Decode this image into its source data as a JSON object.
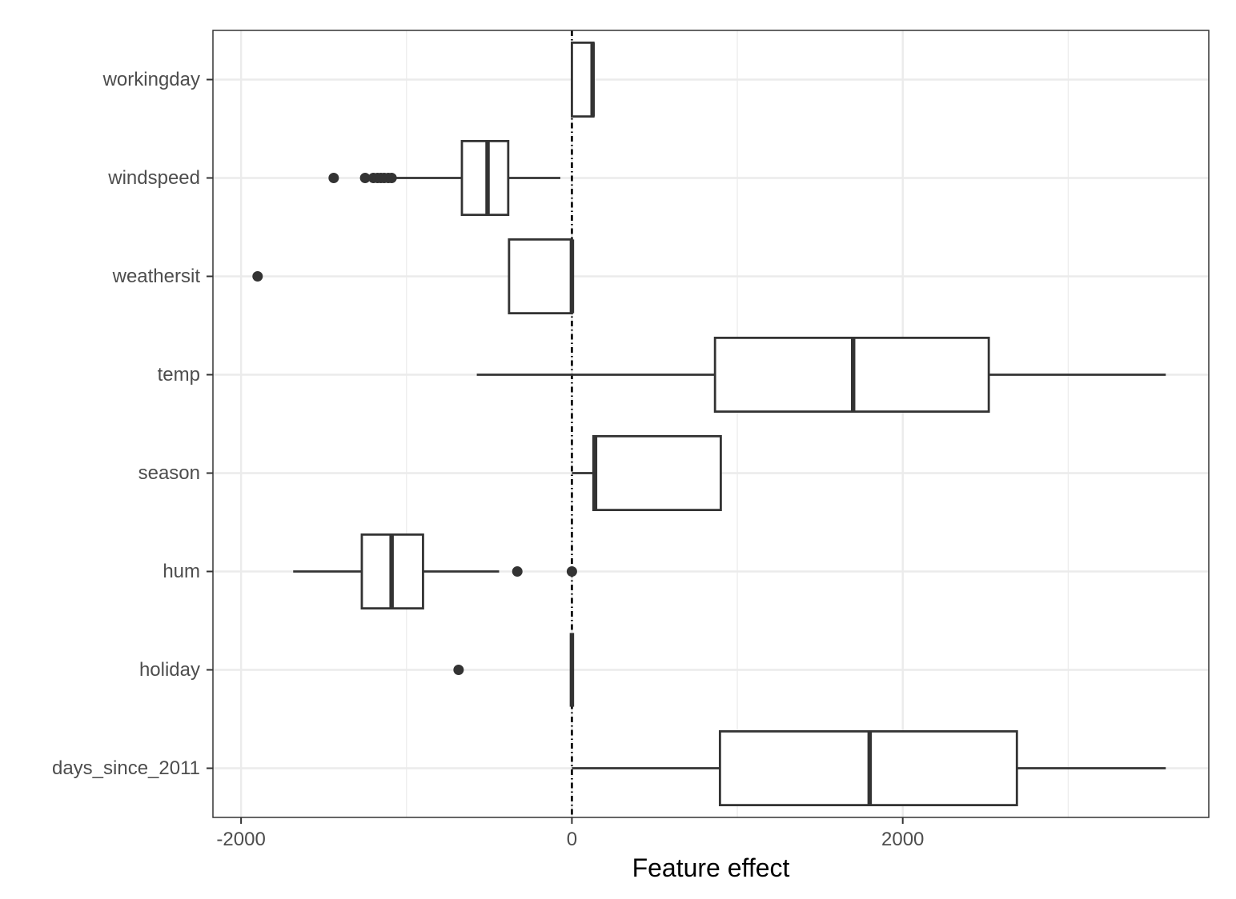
{
  "chart_data": {
    "type": "boxplot",
    "title": "",
    "xlabel": "Feature effect",
    "ylabel": "",
    "xlim": [
      -2170,
      3850
    ],
    "x_ticks": [
      -2000,
      0,
      2000
    ],
    "x_tick_labels": [
      "-2000",
      "0",
      "2000"
    ],
    "x_minor_gridlines": [
      -1000,
      1000,
      3000
    ],
    "grid": true,
    "legend": "none",
    "reference_line": {
      "x": 0,
      "style": "dot-dash"
    },
    "categories": [
      "workingday",
      "windspeed",
      "weathersit",
      "temp",
      "season",
      "hum",
      "holiday",
      "days_since_2011"
    ],
    "boxes": [
      {
        "name": "workingday",
        "whisker_low": 0,
        "q1": 0,
        "median": 125,
        "q3": 130,
        "whisker_high": 130,
        "outliers": []
      },
      {
        "name": "windspeed",
        "whisker_low": -1085,
        "q1": -665,
        "median": -510,
        "q3": -385,
        "whisker_high": -70,
        "outliers": [
          -1440,
          -1250,
          -1200,
          -1175,
          -1155,
          -1135,
          -1110,
          -1090
        ]
      },
      {
        "name": "weathersit",
        "whisker_low": -380,
        "q1": -380,
        "median": 0,
        "q3": 0,
        "whisker_high": 0,
        "outliers": [
          -1900
        ]
      },
      {
        "name": "temp",
        "whisker_low": -575,
        "q1": 865,
        "median": 1700,
        "q3": 2520,
        "whisker_high": 3590,
        "outliers": []
      },
      {
        "name": "season",
        "whisker_low": 0,
        "q1": 130,
        "median": 140,
        "q3": 900,
        "whisker_high": 900,
        "outliers": []
      },
      {
        "name": "hum",
        "whisker_low": -1685,
        "q1": -1270,
        "median": -1090,
        "q3": -900,
        "whisker_high": -440,
        "outliers": [
          -330,
          0
        ]
      },
      {
        "name": "holiday",
        "whisker_low": 0,
        "q1": 0,
        "median": 0,
        "q3": 0,
        "whisker_high": 0,
        "outliers": [
          -685
        ]
      },
      {
        "name": "days_since_2011",
        "whisker_low": 0,
        "q1": 895,
        "median": 1800,
        "q3": 2690,
        "whisker_high": 3590,
        "outliers": []
      }
    ],
    "colors": {
      "box_stroke": "#333333",
      "box_fill": "#ffffff",
      "grid": "#ebebeb",
      "panel_border": "#333333",
      "tick_text": "#4d4d4d",
      "title_text": "#000000",
      "reference_line": "#000000"
    }
  }
}
